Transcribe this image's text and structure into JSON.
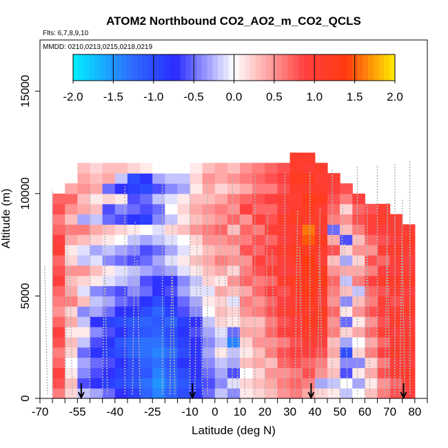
{
  "chart_data": {
    "type": "heatmap",
    "title": "ATOM2 Northbound CO2_AO2_m_CO2_QCLS",
    "flights_label": "Flts: 6,7,8,9,10",
    "dates_label": "MMDD: 0210,0213,0215,0218,0219",
    "xlabel": "Latitude (deg N)",
    "ylabel": "Altitude (m)",
    "xlim": [
      -70,
      85
    ],
    "ylim": [
      0,
      17500
    ],
    "x_ticks": [
      -70,
      -55,
      -40,
      -25,
      -10,
      0,
      10,
      20,
      30,
      40,
      50,
      60,
      70,
      80
    ],
    "y_ticks": [
      0,
      5000,
      10000,
      15000
    ],
    "colorbar": {
      "range": [
        -2.0,
        2.0
      ],
      "ticks": [
        "-2.0",
        "-1.5",
        "-1.0",
        "-0.5",
        "0.0",
        "0.5",
        "1.0",
        "1.5",
        "2.0"
      ],
      "stops": [
        "#00f0ff",
        "#2f6dff",
        "#2a2aff",
        "#ffffff",
        "#ff4040",
        "#ff3a10",
        "#ffee00"
      ]
    },
    "cell_latitude_step": 5,
    "cell_altitude_step_m": 500,
    "columns": [
      {
        "lat": -65,
        "top": 10000,
        "values": [
          0.6,
          0.8,
          0.9,
          0.7,
          0.6,
          0.8,
          0.9,
          0.7,
          0.5,
          0.6,
          0.7,
          0.9,
          0.8,
          0.7,
          1.0,
          0.9,
          0.7,
          0.6,
          0.8,
          0.7
        ]
      },
      {
        "lat": -60,
        "top": 10500,
        "values": [
          0.2,
          0.3,
          0.1,
          0.0,
          0.2,
          0.3,
          0.1,
          0.4,
          0.2,
          0.6,
          0.4,
          0.3,
          0.5,
          0.2,
          0.1,
          0.4,
          0.6,
          0.3,
          0.5,
          0.7,
          0.4
        ]
      },
      {
        "lat": -55,
        "top": 11500,
        "values": [
          -0.2,
          -0.6,
          -0.4,
          -0.3,
          -0.5,
          -0.2,
          0.1,
          -0.2,
          -0.4,
          0.3,
          -0.1,
          0.2,
          0.5,
          -0.2,
          -0.1,
          0.3,
          0.6,
          -0.3,
          0.4,
          0.3,
          0.5,
          0.4,
          0.3
        ]
      },
      {
        "lat": -50,
        "top": 11500,
        "values": [
          -0.3,
          -0.7,
          -0.6,
          -0.5,
          -0.8,
          -0.6,
          -0.4,
          -0.7,
          -0.3,
          -0.2,
          -0.4,
          0.1,
          0.3,
          -0.1,
          -0.3,
          0.2,
          0.4,
          -0.2,
          0.3,
          0.1,
          0.4,
          0.3,
          0.2
        ]
      },
      {
        "lat": -45,
        "top": 11500,
        "values": [
          -0.5,
          -0.9,
          -0.7,
          -0.6,
          -0.9,
          -0.8,
          -0.6,
          -0.9,
          -0.5,
          -0.3,
          -0.5,
          -0.1,
          0.1,
          -0.4,
          -0.2,
          0.1,
          0.3,
          -0.5,
          -0.6,
          0.2,
          -0.5,
          0.4,
          0.3
        ]
      },
      {
        "lat": -40,
        "top": 11500,
        "values": [
          -0.7,
          -1.0,
          -0.9,
          -0.8,
          -1.0,
          -1.1,
          -0.8,
          -1.0,
          -0.7,
          -0.5,
          -0.6,
          -0.2,
          -0.1,
          -0.5,
          -0.3,
          0.0,
          0.2,
          -0.6,
          -0.4,
          0.1,
          -0.7,
          -0.2,
          0.3
        ]
      },
      {
        "lat": -35,
        "top": 11500,
        "values": [
          -0.9,
          -1.1,
          -1.0,
          -1.0,
          -1.2,
          -1.2,
          -1.0,
          -1.1,
          -0.8,
          -0.6,
          -0.4,
          -0.3,
          -0.2,
          -0.6,
          -0.4,
          -0.2,
          0.1,
          -0.8,
          -0.5,
          -0.6,
          -0.9,
          -1.0,
          0.2
        ]
      },
      {
        "lat": -30,
        "top": 11500,
        "values": [
          -1.2,
          -1.3,
          -1.1,
          -1.2,
          -1.3,
          -1.3,
          -1.1,
          -1.2,
          -1.0,
          -0.8,
          -0.5,
          -0.6,
          -0.3,
          -0.5,
          -0.6,
          -0.3,
          0.0,
          -0.9,
          -0.6,
          -0.5,
          -1.0,
          -0.8,
          0.1
        ]
      },
      {
        "lat": -25,
        "top": 11500,
        "values": [
          -1.4,
          -1.5,
          -1.4,
          -1.3,
          -1.4,
          -1.3,
          -1.2,
          -1.1,
          -1.2,
          -1.0,
          -0.7,
          -0.8,
          -0.4,
          -0.3,
          -0.5,
          -0.2,
          -0.1,
          -0.4,
          -0.5,
          -0.2,
          -0.6,
          -0.3,
          0.0
        ]
      },
      {
        "lat": -20,
        "top": 11500,
        "values": [
          -1.2,
          -1.3,
          -1.2,
          -1.1,
          -1.3,
          -1.1,
          -1.0,
          -1.2,
          -0.9,
          -0.8,
          -0.6,
          -0.7,
          -0.3,
          -0.1,
          -0.3,
          -0.1,
          0.2,
          -0.2,
          0.0,
          -0.1,
          -0.4,
          -0.2,
          0.0
        ]
      },
      {
        "lat": -15,
        "top": 11500,
        "values": [
          -1.0,
          -1.1,
          -1.0,
          -0.8,
          -1.0,
          -0.9,
          -0.8,
          -0.9,
          -0.6,
          -0.5,
          -0.3,
          -0.4,
          -0.1,
          0.1,
          -0.1,
          0.0,
          0.3,
          0.1,
          0.2,
          0.1,
          -0.3,
          -0.2,
          0.0
        ]
      },
      {
        "lat": -10,
        "top": 11500,
        "values": [
          -0.8,
          -0.9,
          -0.8,
          -0.7,
          -0.8,
          -0.7,
          -0.6,
          -0.7,
          -0.4,
          -0.3,
          -0.1,
          -0.2,
          0.1,
          0.3,
          0.1,
          0.2,
          0.5,
          0.3,
          0.4,
          0.3,
          0.1,
          0.2,
          0.1
        ]
      },
      {
        "lat": -5,
        "top": 11500,
        "values": [
          -0.5,
          -0.6,
          -0.5,
          -0.4,
          -0.3,
          -0.4,
          -0.3,
          -0.2,
          0.0,
          0.1,
          -0.1,
          0.2,
          0.3,
          0.4,
          0.3,
          0.5,
          0.6,
          0.4,
          0.5,
          0.3,
          0.4,
          0.5,
          0.3
        ]
      },
      {
        "lat": 0,
        "top": 11500,
        "values": [
          -0.2,
          -0.4,
          -0.3,
          -0.2,
          0.1,
          -0.2,
          -0.1,
          0.2,
          0.3,
          0.2,
          0.4,
          0.1,
          0.4,
          0.6,
          0.4,
          0.5,
          0.7,
          0.5,
          0.6,
          0.4,
          0.2,
          0.4,
          0.4
        ]
      },
      {
        "lat": 5,
        "top": 11500,
        "values": [
          -0.4,
          -0.1,
          -0.6,
          -0.3,
          -0.2,
          -1.4,
          -0.5,
          0.1,
          0.2,
          -0.1,
          0.3,
          0.5,
          0.2,
          0.5,
          0.4,
          0.6,
          0.3,
          0.7,
          0.5,
          0.6,
          0.3,
          0.5,
          0.3
        ]
      },
      {
        "lat": 10,
        "top": 11500,
        "values": [
          0.1,
          0.2,
          0.0,
          0.3,
          0.1,
          0.2,
          0.4,
          0.3,
          0.5,
          0.6,
          0.4,
          0.7,
          0.6,
          0.5,
          0.8,
          0.6,
          0.7,
          0.5,
          0.9,
          0.7,
          0.4,
          0.6,
          0.5
        ]
      },
      {
        "lat": 15,
        "top": 11500,
        "values": [
          0.2,
          0.3,
          0.2,
          0.4,
          0.3,
          0.5,
          0.4,
          0.3,
          0.6,
          0.5,
          0.7,
          0.6,
          0.8,
          0.9,
          0.7,
          0.8,
          0.6,
          0.9,
          0.7,
          0.8,
          0.6,
          0.7,
          0.6
        ]
      },
      {
        "lat": 20,
        "top": 11500,
        "values": [
          0.3,
          0.4,
          0.5,
          0.3,
          0.6,
          0.5,
          0.7,
          0.6,
          0.8,
          0.7,
          0.9,
          0.7,
          1.0,
          0.8,
          0.9,
          0.7,
          1.0,
          0.8,
          0.7,
          0.9,
          0.6,
          0.8,
          0.7
        ]
      },
      {
        "lat": 25,
        "top": 11500,
        "values": [
          0.5,
          0.6,
          0.5,
          0.7,
          0.8,
          0.6,
          0.9,
          0.8,
          1.0,
          0.9,
          0.8,
          1.1,
          0.9,
          1.0,
          1.1,
          0.9,
          1.0,
          1.1,
          0.9,
          1.0,
          0.8,
          0.9,
          0.8
        ]
      },
      {
        "lat": 30,
        "top": 12000,
        "values": [
          0.6,
          0.7,
          0.6,
          0.8,
          0.9,
          0.8,
          1.0,
          0.9,
          1.1,
          1.0,
          1.1,
          1.2,
          1.0,
          1.1,
          1.2,
          1.1,
          1.0,
          1.2,
          1.1,
          1.0,
          1.1,
          1.2,
          1.1,
          1.1
        ]
      },
      {
        "lat": 35,
        "top": 12000,
        "values": [
          0.4,
          0.6,
          0.8,
          0.7,
          0.9,
          1.0,
          1.1,
          1.2,
          1.1,
          1.2,
          1.3,
          1.2,
          1.3,
          1.4,
          1.2,
          1.5,
          1.6,
          1.1,
          1.2,
          1.3,
          1.1,
          1.2,
          1.0,
          1.1
        ]
      },
      {
        "lat": 40,
        "top": 11500,
        "values": [
          0.2,
          -0.3,
          0.5,
          0.6,
          0.8,
          0.9,
          1.0,
          1.1,
          1.2,
          1.0,
          1.1,
          1.3,
          1.2,
          1.0,
          1.1,
          1.2,
          1.0,
          1.1,
          1.0,
          1.2,
          1.1,
          1.0,
          1.1
        ]
      },
      {
        "lat": 45,
        "top": 11000,
        "values": [
          0.1,
          -0.2,
          0.3,
          0.2,
          0.4,
          0.3,
          0.6,
          0.5,
          0.7,
          0.5,
          0.6,
          0.7,
          0.5,
          0.3,
          0.8,
          0.4,
          -0.5,
          0.6,
          0.7,
          0.8,
          0.9,
          1.0
        ]
      },
      {
        "lat": 50,
        "top": 10500,
        "values": [
          -0.2,
          0.0,
          -0.6,
          -0.4,
          -1.0,
          -0.3,
          0.2,
          -0.5,
          0.1,
          -0.4,
          0.3,
          -0.2,
          0.4,
          -0.3,
          0.2,
          -0.6,
          0.3,
          0.5,
          0.2,
          0.6,
          0.8
        ]
      },
      {
        "lat": 55,
        "top": 10000,
        "values": [
          0.0,
          -0.3,
          0.1,
          -0.4,
          0.2,
          0.0,
          0.4,
          0.1,
          0.5,
          0.3,
          -0.2,
          0.6,
          0.4,
          0.2,
          0.5,
          0.3,
          0.6,
          0.8,
          0.7,
          0.9
        ]
      },
      {
        "lat": 60,
        "top": 9500,
        "values": [
          0.3,
          0.1,
          0.4,
          0.2,
          0.6,
          0.4,
          0.7,
          0.5,
          0.8,
          0.6,
          0.7,
          0.9,
          0.6,
          0.8,
          0.5,
          0.7,
          0.9,
          1.0,
          0.8
        ]
      },
      {
        "lat": 65,
        "top": 9500,
        "values": [
          0.6,
          0.5,
          0.8,
          0.6,
          0.9,
          0.7,
          1.0,
          0.8,
          0.9,
          1.0,
          0.8,
          1.1,
          0.9,
          0.7,
          1.0,
          0.8,
          0.9,
          1.1,
          1.0
        ]
      },
      {
        "lat": 70,
        "top": 9000,
        "values": [
          0.8,
          0.7,
          1.0,
          0.9,
          1.1,
          1.0,
          0.9,
          1.1,
          1.0,
          0.8,
          1.0,
          1.1,
          0.9,
          1.0,
          1.1,
          0.9,
          1.0,
          1.0
        ]
      },
      {
        "lat": 75,
        "top": 8500,
        "values": [
          0.9,
          1.0,
          1.1,
          0.9,
          1.0,
          1.1,
          1.0,
          0.9,
          1.1,
          1.0,
          0.9,
          1.1,
          1.0,
          0.9,
          1.0,
          1.1,
          1.0
        ]
      }
    ],
    "profiles_lat": [
      -67,
      -65,
      -60,
      -57,
      -50,
      -45,
      -43,
      -36,
      -33,
      -30,
      -21,
      -18,
      -16,
      -10,
      -8,
      -5,
      -3,
      1,
      5,
      7,
      9,
      12,
      16,
      20,
      24,
      28,
      32,
      35,
      38,
      41,
      43,
      47,
      50,
      53,
      57,
      60,
      62,
      65,
      68,
      70,
      72,
      74,
      76,
      78
    ],
    "arrows_lat": [
      -53.5,
      -9,
      38.5,
      75.5
    ]
  }
}
